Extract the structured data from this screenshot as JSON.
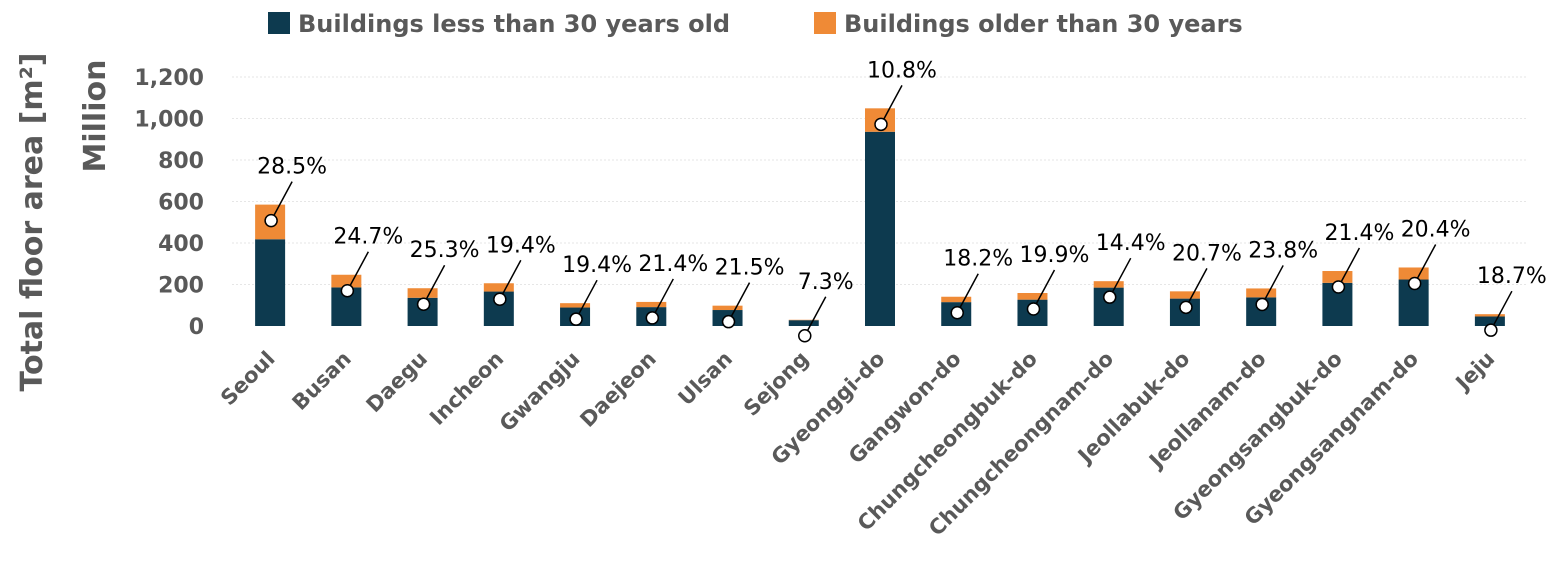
{
  "chart_data": {
    "type": "bar",
    "stacked": true,
    "title": "",
    "ylabel": "Total floor area [m²]",
    "ylabel_unit": "Million",
    "xlabel": "",
    "ylim": [
      0,
      1200
    ],
    "yticks": [
      0,
      200,
      400,
      600,
      800,
      1000,
      1200
    ],
    "ytick_labels": [
      "0",
      "200",
      "400",
      "600",
      "800",
      "1,000",
      "1,200"
    ],
    "grid": true,
    "legend_position": "top",
    "categories": [
      "Seoul",
      "Busan",
      "Daegu",
      "Incheon",
      "Gwangju",
      "Daejeon",
      "Ulsan",
      "Sejong",
      "Gyeonggi-do",
      "Gangwon-do",
      "Chungcheongbuk-do",
      "Chungcheongnam-do",
      "Jeollabuk-do",
      "Jeollanam-do",
      "Gyeongsangbuk-do",
      "Gyeongsangnam-do",
      "Jeju"
    ],
    "series": [
      {
        "name": "Buildings less than 30 years old",
        "color": "#0d3a4f",
        "values": [
          418,
          186,
          136,
          166,
          89,
          91,
          77,
          28,
          936,
          115,
          127,
          185,
          132,
          138,
          208,
          224,
          46
        ]
      },
      {
        "name": "Buildings older than 30 years",
        "color": "#ef8a36",
        "values": [
          167,
          61,
          46,
          40,
          21,
          25,
          21,
          2,
          113,
          26,
          32,
          31,
          35,
          43,
          57,
          58,
          11
        ]
      }
    ],
    "percent_labels": [
      "28.5%",
      "24.7%",
      "25.3%",
      "19.4%",
      "19.4%",
      "21.4%",
      "21.5%",
      "7.3%",
      "10.8%",
      "18.2%",
      "19.9%",
      "14.4%",
      "20.7%",
      "23.8%",
      "21.4%",
      "20.4%",
      "18.7%"
    ]
  }
}
